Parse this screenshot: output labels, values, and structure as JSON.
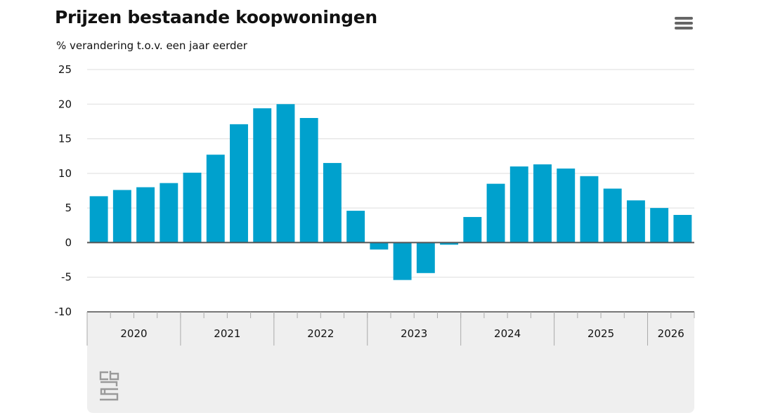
{
  "header": {
    "title": "Prijzen bestaande koopwoningen",
    "subtitle": "% verandering t.o.v. een jaar eerder"
  },
  "menu_icon": "hamburger-menu-icon",
  "logo_icon": "cbs-logo-icon",
  "colors": {
    "bar": "#00a1cd",
    "grid": "#dddddd",
    "zero_line": "#555555",
    "axis_band": "#efefef"
  },
  "chart_data": {
    "type": "bar",
    "title": "Prijzen bestaande koopwoningen",
    "subtitle": "% verandering t.o.v. een jaar eerder",
    "ylim": [
      -10,
      25
    ],
    "yticks": [
      25,
      20,
      15,
      10,
      5,
      0,
      -5,
      -10
    ],
    "grid": true,
    "legend": "none",
    "categories": [
      "2020 Q1",
      "2020 Q2",
      "2020 Q3",
      "2020 Q4",
      "2021 Q1",
      "2021 Q2",
      "2021 Q3",
      "2021 Q4",
      "2022 Q1",
      "2022 Q2",
      "2022 Q3",
      "2022 Q4",
      "2023 Q1",
      "2023 Q2",
      "2023 Q3",
      "2023 Q4",
      "2024 Q1",
      "2024 Q2",
      "2024 Q3",
      "2024 Q4",
      "2025 Q1",
      "2025 Q2",
      "2025 Q3",
      "2025 Q4",
      "2026 Q1",
      "2026 Q2"
    ],
    "values": [
      6.7,
      7.6,
      8.0,
      8.6,
      10.1,
      12.7,
      17.1,
      19.4,
      20.0,
      18.0,
      11.5,
      4.6,
      -1.0,
      -5.4,
      -4.4,
      -0.3,
      3.7,
      8.5,
      11.0,
      11.3,
      10.7,
      9.6,
      7.8,
      6.1,
      5.0,
      4.0
    ],
    "year_labels": [
      "2020",
      "2021",
      "2022",
      "2023",
      "2024",
      "2025",
      "2026"
    ]
  }
}
